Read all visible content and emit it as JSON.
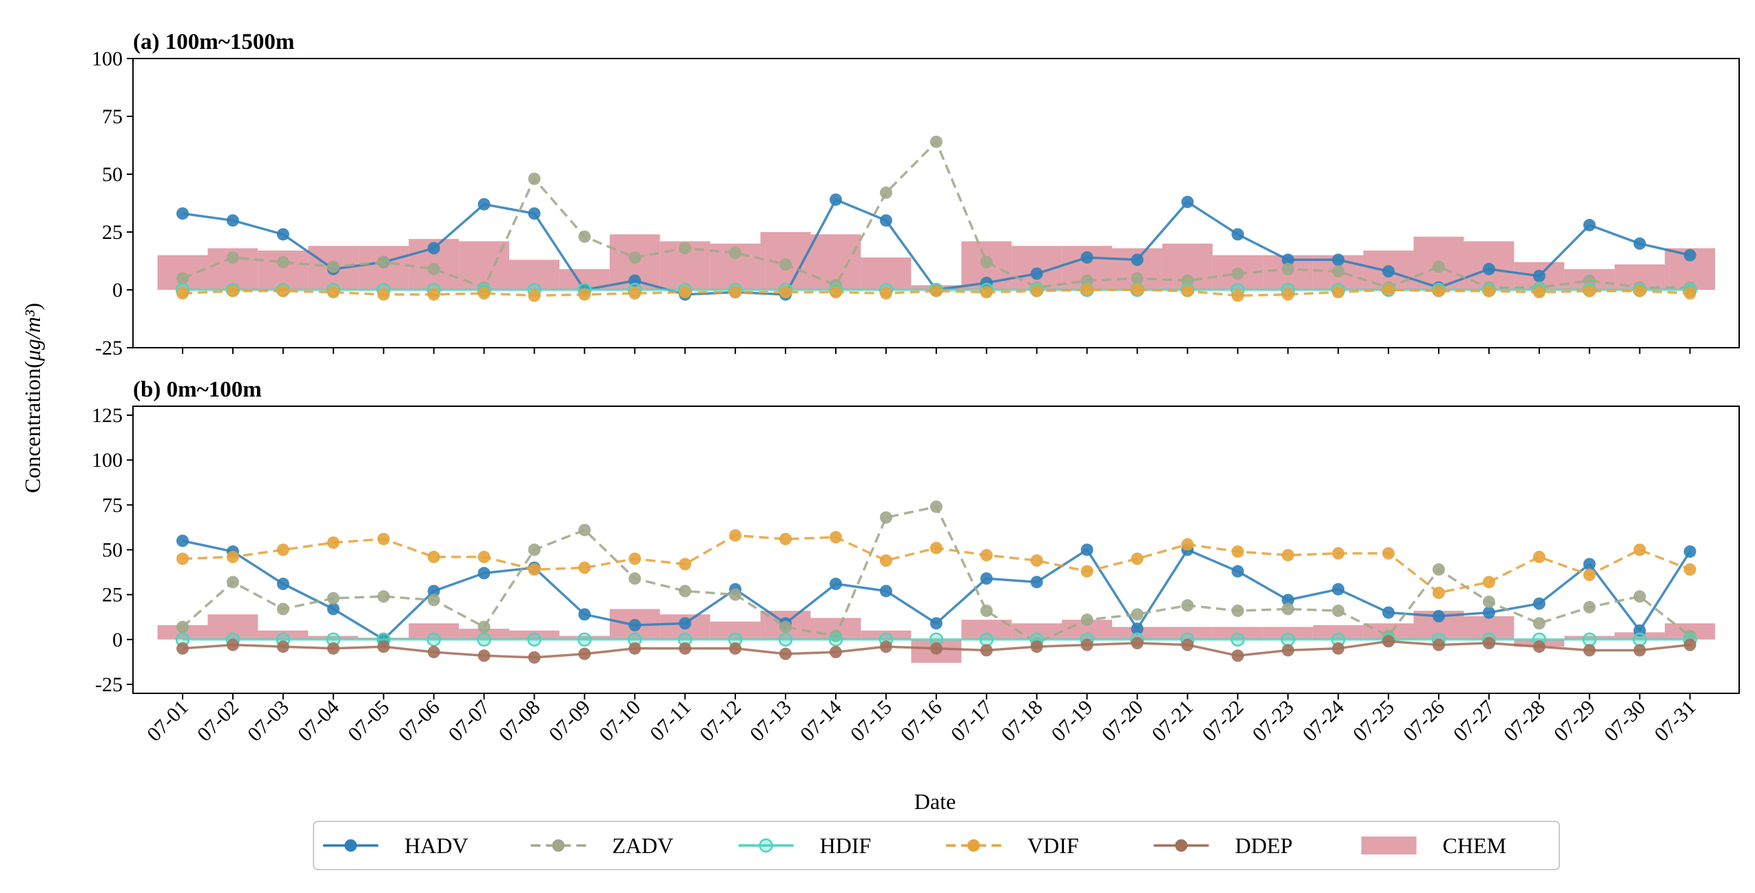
{
  "chart_data": [
    {
      "type": "line",
      "title": "(a) 100m~1500m",
      "xlabel": "",
      "ylabel": "Concentration(μg/m³)",
      "ylim": [
        -25,
        100
      ],
      "yticks": [
        -25,
        0,
        25,
        50,
        75,
        100
      ],
      "categories": [
        "07-01",
        "07-02",
        "07-03",
        "07-04",
        "07-05",
        "07-06",
        "07-07",
        "07-08",
        "07-09",
        "07-10",
        "07-11",
        "07-12",
        "07-13",
        "07-14",
        "07-15",
        "07-16",
        "07-17",
        "07-18",
        "07-19",
        "07-20",
        "07-21",
        "07-22",
        "07-23",
        "07-24",
        "07-25",
        "07-26",
        "07-27",
        "07-28",
        "07-29",
        "07-30",
        "07-31"
      ],
      "series": [
        {
          "name": "HADV",
          "kind": "line",
          "style": "solid",
          "color": "#2f7fb8",
          "values": [
            33,
            30,
            24,
            9,
            12,
            18,
            37,
            33,
            0,
            4,
            -2,
            -1,
            -2,
            39,
            30,
            0,
            3,
            7,
            14,
            13,
            38,
            24,
            13,
            13,
            8,
            1,
            9,
            6,
            28,
            20,
            15
          ]
        },
        {
          "name": "ZADV",
          "kind": "line",
          "style": "dashed",
          "color": "#9fa98a",
          "values": [
            5,
            14,
            12,
            10,
            12,
            9,
            1,
            48,
            23,
            14,
            18,
            16,
            11,
            2,
            42,
            64,
            12,
            1,
            4,
            5,
            4,
            7,
            9,
            8,
            1,
            10,
            1,
            1,
            4,
            1,
            1
          ]
        },
        {
          "name": "HDIF",
          "kind": "line",
          "style": "solid",
          "color": "#4fd4bd",
          "values": [
            0,
            0,
            0,
            0,
            0,
            0,
            0,
            0,
            0,
            0,
            0,
            0,
            0,
            0,
            0,
            0,
            0,
            0,
            0,
            0,
            0,
            0,
            0,
            0,
            0,
            0,
            0,
            0,
            0,
            0,
            0
          ]
        },
        {
          "name": "VDIF",
          "kind": "line",
          "style": "dashed",
          "color": "#e6a33a",
          "values": [
            -1.5,
            -0.5,
            -0.5,
            -1,
            -2,
            -2,
            -1.5,
            -2.5,
            -2,
            -1.5,
            -1,
            -1,
            -1,
            -1,
            -1.5,
            -0.5,
            -1,
            -0.5,
            0,
            0,
            -0.5,
            -2.5,
            -2,
            -1,
            0,
            -0.5,
            -0.5,
            -1,
            -0.5,
            -0.5,
            -1.5
          ]
        },
        {
          "name": "CHEM",
          "kind": "bar",
          "color": "#dc8d99",
          "values": [
            15,
            18,
            17,
            19,
            19,
            22,
            21,
            13,
            9,
            24,
            21,
            20,
            25,
            24,
            14,
            2,
            21,
            19,
            19,
            18,
            20,
            15,
            15,
            15,
            17,
            23,
            21,
            12,
            9,
            11,
            18
          ]
        }
      ]
    },
    {
      "type": "line",
      "title": "(b) 0m~100m",
      "xlabel": "Date",
      "ylabel": "Concentration(μg/m³)",
      "ylim": [
        -30,
        130
      ],
      "yticks": [
        -25,
        0,
        25,
        50,
        75,
        100,
        125
      ],
      "categories": [
        "07-01",
        "07-02",
        "07-03",
        "07-04",
        "07-05",
        "07-06",
        "07-07",
        "07-08",
        "07-09",
        "07-10",
        "07-11",
        "07-12",
        "07-13",
        "07-14",
        "07-15",
        "07-16",
        "07-17",
        "07-18",
        "07-19",
        "07-20",
        "07-21",
        "07-22",
        "07-23",
        "07-24",
        "07-25",
        "07-26",
        "07-27",
        "07-28",
        "07-29",
        "07-30",
        "07-31"
      ],
      "series": [
        {
          "name": "HADV",
          "kind": "line",
          "style": "solid",
          "color": "#2f7fb8",
          "values": [
            55,
            49,
            31,
            17,
            0,
            27,
            37,
            40,
            14,
            8,
            9,
            28,
            9,
            31,
            27,
            9,
            34,
            32,
            50,
            6,
            50,
            38,
            22,
            28,
            15,
            13,
            15,
            20,
            42,
            5,
            49
          ]
        },
        {
          "name": "ZADV",
          "kind": "line",
          "style": "dashed",
          "color": "#9fa98a",
          "values": [
            7,
            32,
            17,
            23,
            24,
            22,
            7,
            50,
            61,
            34,
            27,
            25,
            7,
            2,
            68,
            74,
            16,
            -2,
            11,
            14,
            19,
            16,
            17,
            16,
            2,
            39,
            21,
            9,
            18,
            24,
            2
          ]
        },
        {
          "name": "HDIF",
          "kind": "line",
          "style": "solid",
          "color": "#4fd4bd",
          "values": [
            0,
            0,
            0,
            0,
            0,
            0,
            0,
            0,
            0,
            0,
            0,
            0,
            0,
            0,
            0,
            0,
            0,
            0,
            0,
            0,
            0,
            0,
            0,
            0,
            0,
            0,
            0,
            0,
            0,
            0,
            0
          ]
        },
        {
          "name": "VDIF",
          "kind": "line",
          "style": "dashed",
          "color": "#e6a33a",
          "values": [
            45,
            46,
            50,
            54,
            56,
            46,
            46,
            39,
            40,
            45,
            42,
            58,
            56,
            57,
            44,
            51,
            47,
            44,
            38,
            45,
            53,
            49,
            47,
            48,
            48,
            26,
            32,
            46,
            36,
            50,
            39
          ]
        },
        {
          "name": "DDEP",
          "kind": "line",
          "style": "solid",
          "color": "#a3705a",
          "values": [
            -5,
            -3,
            -4,
            -5,
            -4,
            -7,
            -9,
            -10,
            -8,
            -5,
            -5,
            -5,
            -8,
            -7,
            -4,
            -5,
            -6,
            -4,
            -3,
            -2,
            -3,
            -9,
            -6,
            -5,
            -1,
            -3,
            -2,
            -4,
            -6,
            -6,
            -3
          ]
        },
        {
          "name": "CHEM",
          "kind": "bar",
          "color": "#dc8d99",
          "values": [
            8,
            14,
            5,
            2,
            1,
            9,
            6,
            5,
            2,
            17,
            14,
            10,
            16,
            12,
            5,
            -13,
            11,
            9,
            11,
            7,
            7,
            7,
            7,
            8,
            9,
            16,
            13,
            -4,
            2,
            4,
            9
          ]
        }
      ]
    }
  ],
  "legend": {
    "placement": "bottom-center",
    "entries": [
      {
        "label": "HADV",
        "color": "#2f7fb8",
        "kind": "line-marker",
        "style": "solid"
      },
      {
        "label": "ZADV",
        "color": "#9fa98a",
        "kind": "line-marker",
        "style": "dashed"
      },
      {
        "label": "HDIF",
        "color": "#4fd4bd",
        "kind": "line-marker-hollow",
        "style": "solid"
      },
      {
        "label": "VDIF",
        "color": "#e6a33a",
        "kind": "line-marker",
        "style": "dashed"
      },
      {
        "label": "DDEP",
        "color": "#a3705a",
        "kind": "line-marker",
        "style": "solid"
      },
      {
        "label": "CHEM",
        "color": "#dc8d99",
        "kind": "patch"
      }
    ]
  },
  "shared": {
    "ylabel": "Concentration(μg/m³)",
    "xlabel": "Date"
  }
}
